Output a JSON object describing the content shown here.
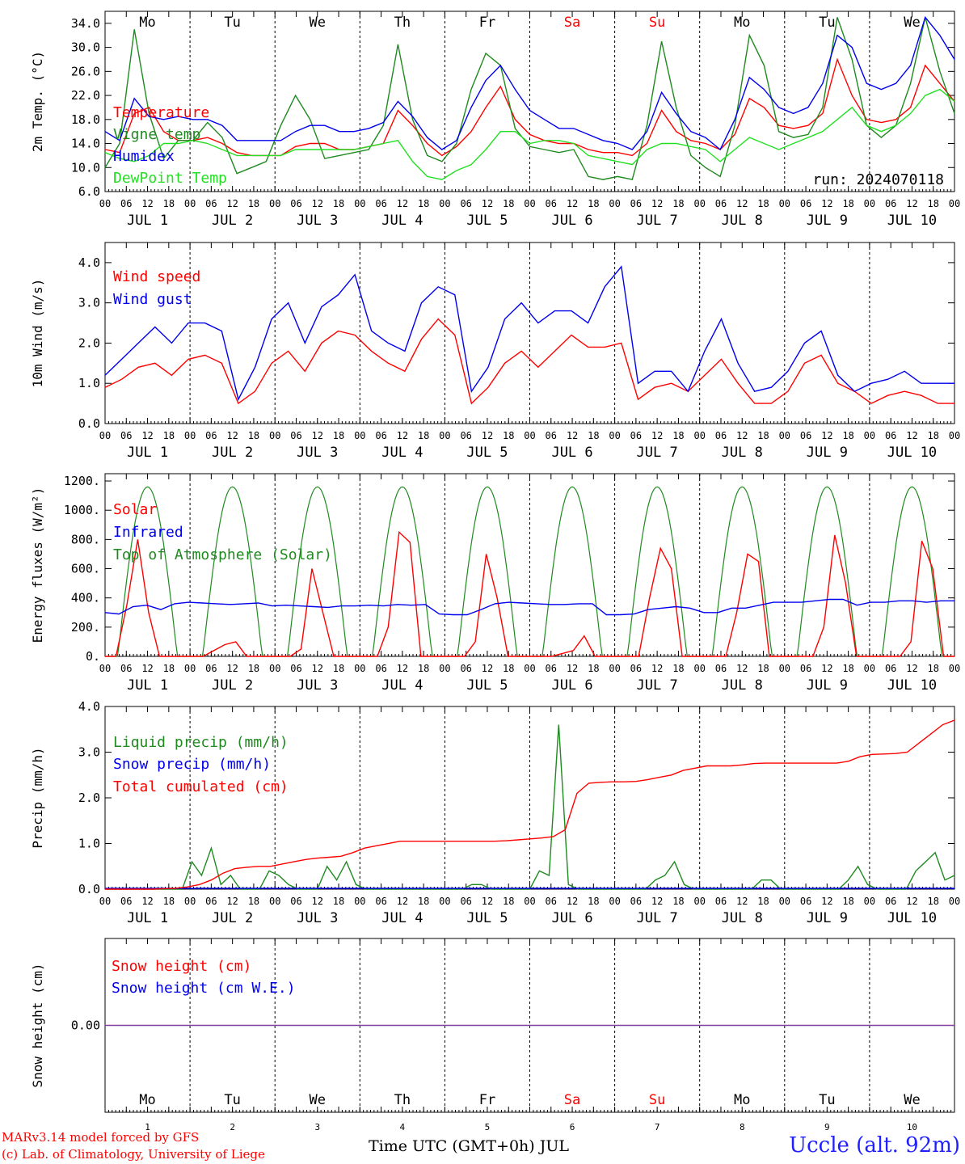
{
  "colors": {
    "temp": "#ff0000",
    "vigne": "#1f8a1f",
    "humidex": "#0000ee",
    "dew": "#22e022",
    "precip_liquid": "#1f8a1f",
    "precip_snow": "#0000ee",
    "cum": "#ff0000",
    "snow_cm": "#ff0000",
    "snow_we": "#0000ee",
    "snow_line": "#8040a0",
    "weekend": "#ff0000",
    "axis": "#000000"
  },
  "days": {
    "names": [
      "Mo",
      "Tu",
      "We",
      "Th",
      "Fr",
      "Sa",
      "Su",
      "Mo",
      "Tu",
      "We"
    ],
    "weekend": [
      false,
      false,
      false,
      false,
      false,
      true,
      true,
      false,
      false,
      false
    ],
    "numbers": [
      "1",
      "2",
      "3",
      "4",
      "5",
      "6",
      "7",
      "8",
      "9",
      "10"
    ],
    "labels": [
      "JUL  1",
      "JUL  2",
      "JUL  3",
      "JUL  4",
      "JUL  5",
      "JUL  6",
      "JUL  7",
      "JUL  8",
      "JUL  9",
      "JUL 10"
    ],
    "hour_ticks": [
      "00",
      "06",
      "12",
      "18"
    ],
    "final_tick": "00"
  },
  "chart_data": [
    {
      "type": "line",
      "ylabel": "2m Temp. (°C)",
      "ylim": [
        6,
        36
      ],
      "yticks": [
        "6.0",
        "10.0",
        "14.0",
        "18.0",
        "22.0",
        "26.0",
        "30.0",
        "34.0"
      ],
      "annotation": "run: 2024070118",
      "hours_per_step": 6,
      "series": [
        {
          "name": "Temperature",
          "key": "temp",
          "values": [
            13,
            12.5,
            19,
            20,
            16,
            14.5,
            14.5,
            15,
            14,
            12.5,
            12,
            12,
            12,
            13.5,
            14,
            14,
            13,
            13,
            13.5,
            14,
            19.5,
            17,
            14,
            12,
            13.5,
            16,
            20,
            23.5,
            18,
            15.5,
            14.5,
            14,
            14,
            13,
            12.5,
            12.5,
            12,
            14,
            19.5,
            16,
            14.5,
            14,
            13,
            15.5,
            21.5,
            20,
            17,
            16.5,
            17,
            19,
            28,
            22,
            18,
            17.5,
            18,
            20,
            27,
            24,
            21
          ]
        },
        {
          "name": "Vigne temp",
          "key": "vigne",
          "values": [
            10,
            14,
            33,
            19,
            11.5,
            14.5,
            14.5,
            17.5,
            15,
            9,
            10,
            11,
            17,
            22,
            18,
            11.5,
            12,
            12.5,
            13,
            17,
            30.5,
            18,
            12,
            11,
            14,
            23,
            29,
            27,
            16.5,
            13.5,
            13,
            12.5,
            13,
            8.5,
            8,
            8.5,
            8,
            17,
            31,
            20,
            12,
            10,
            8.5,
            17,
            32,
            27,
            16,
            15,
            15.5,
            20,
            35,
            28,
            17,
            15,
            17,
            24,
            35,
            26,
            19
          ]
        },
        {
          "name": "Humidex",
          "key": "humidex",
          "values": [
            16,
            14.5,
            21.5,
            18.5,
            18,
            18.5,
            18,
            18,
            17,
            14.5,
            14.5,
            14.5,
            14.5,
            16,
            17,
            17,
            16,
            16,
            16.5,
            17.5,
            21,
            18.5,
            15,
            13,
            14.5,
            20,
            24.5,
            27,
            23,
            19.5,
            18,
            16.5,
            16.5,
            15.5,
            14.5,
            14,
            13,
            16,
            22.5,
            19,
            16,
            15,
            13,
            18,
            25,
            23,
            20,
            19,
            20,
            24,
            32,
            30,
            24,
            23,
            24,
            27,
            35,
            32,
            28
          ]
        },
        {
          "name": "DewPoint Temp",
          "key": "dew",
          "values": [
            12.5,
            11.5,
            11,
            12,
            14,
            14,
            14.5,
            14,
            13,
            12,
            12,
            12,
            12,
            13,
            13,
            13,
            13,
            13,
            13.5,
            14,
            14.5,
            11,
            8.5,
            8,
            9.5,
            10.5,
            13,
            16,
            16,
            14,
            14.5,
            14.5,
            14,
            12,
            11.5,
            11,
            10.5,
            13,
            14,
            14,
            13.5,
            13,
            11,
            13,
            15,
            14,
            13,
            14,
            15,
            16,
            18,
            20,
            17,
            16,
            17,
            19,
            22,
            23,
            21
          ]
        }
      ]
    },
    {
      "type": "line",
      "ylabel": "10m Wind (m/s)",
      "ylim": [
        0,
        4.5
      ],
      "yticks": [
        "0.0",
        "1.0",
        "2.0",
        "3.0",
        "4.0"
      ],
      "hours_per_step": 6,
      "series": [
        {
          "name": "Wind speed",
          "key": "speed",
          "values": [
            0.9,
            1.1,
            1.4,
            1.5,
            1.2,
            1.6,
            1.7,
            1.5,
            0.5,
            0.8,
            1.5,
            1.8,
            1.3,
            2.0,
            2.3,
            2.2,
            1.8,
            1.5,
            1.3,
            2.1,
            2.6,
            2.2,
            0.5,
            0.9,
            1.5,
            1.8,
            1.4,
            1.8,
            2.2,
            1.9,
            1.9,
            2.0,
            0.6,
            0.9,
            1.0,
            0.8,
            1.2,
            1.6,
            1.0,
            0.5,
            0.5,
            0.8,
            1.5,
            1.7,
            1.0,
            0.8,
            0.5,
            0.7,
            0.8,
            0.7,
            0.5,
            0.5
          ]
        },
        {
          "name": "Wind gust",
          "key": "gust",
          "values": [
            1.2,
            1.6,
            2.0,
            2.4,
            2.0,
            2.5,
            2.5,
            2.3,
            0.6,
            1.4,
            2.6,
            3.0,
            2.0,
            2.9,
            3.2,
            3.7,
            2.3,
            2.0,
            1.8,
            3.0,
            3.4,
            3.2,
            0.8,
            1.4,
            2.6,
            3.0,
            2.5,
            2.8,
            2.8,
            2.5,
            3.4,
            3.9,
            1.0,
            1.3,
            1.3,
            0.8,
            1.8,
            2.6,
            1.5,
            0.8,
            0.9,
            1.3,
            2.0,
            2.3,
            1.2,
            0.8,
            1.0,
            1.1,
            1.3,
            1.0,
            1.0,
            1.0
          ]
        }
      ]
    },
    {
      "type": "line",
      "ylabel": "Energy fluxes (W/m²)",
      "ylim": [
        0,
        1250
      ],
      "yticks": [
        "0.",
        "200.",
        "400.",
        "600.",
        "800.",
        "1000.",
        "1200."
      ],
      "hours_per_step": 3,
      "series": [
        {
          "name": "Solar",
          "key": "solar",
          "values": [
            0,
            0,
            350,
            800,
            300,
            0,
            0,
            0,
            0,
            0,
            40,
            80,
            100,
            0,
            0,
            0,
            0,
            0,
            50,
            600,
            300,
            0,
            0,
            0,
            0,
            0,
            200,
            850,
            780,
            0,
            0,
            0,
            0,
            0,
            100,
            700,
            400,
            0,
            0,
            0,
            0,
            0,
            20,
            40,
            140,
            0,
            0,
            0,
            0,
            0,
            400,
            740,
            600,
            0,
            0,
            0,
            0,
            0,
            300,
            700,
            650,
            0,
            0,
            0,
            0,
            0,
            200,
            830,
            500,
            0,
            0,
            0,
            0,
            0,
            100,
            790,
            600,
            0,
            0
          ]
        },
        {
          "name": "Infrared",
          "key": "ir",
          "values": [
            300,
            290,
            340,
            350,
            320,
            360,
            370,
            365,
            360,
            355,
            360,
            365,
            345,
            350,
            345,
            340,
            335,
            345,
            345,
            350,
            345,
            355,
            350,
            355,
            290,
            285,
            285,
            320,
            360,
            370,
            365,
            360,
            355,
            355,
            360,
            360,
            285,
            285,
            290,
            320,
            330,
            340,
            330,
            300,
            300,
            330,
            330,
            350,
            370,
            370,
            370,
            380,
            390,
            390,
            350,
            370,
            370,
            380,
            380,
            370,
            380,
            380
          ]
        },
        {
          "name": "Top of Atmosphere (Solar)",
          "key": "toa",
          "values": []
        }
      ]
    },
    {
      "type": "line",
      "ylabel": "Precip (mm/h)",
      "ylim": [
        0,
        4.0
      ],
      "yticks": [
        "0.0",
        "1.0",
        "2.0",
        "3.0",
        "4.0"
      ],
      "hours_per_step": 3,
      "series": [
        {
          "name": "Liquid precip (mm/h)",
          "key": "liquid",
          "values": [
            0,
            0,
            0,
            0,
            0,
            0,
            0,
            0,
            0,
            0.6,
            0.3,
            0.9,
            0.1,
            0.3,
            0,
            0,
            0,
            0.4,
            0.3,
            0.1,
            0,
            0,
            0,
            0.5,
            0.2,
            0.6,
            0.1,
            0,
            0,
            0,
            0,
            0,
            0,
            0,
            0,
            0,
            0,
            0,
            0.1,
            0.1,
            0,
            0,
            0,
            0,
            0,
            0.4,
            0.3,
            3.6,
            0.1,
            0,
            0,
            0,
            0,
            0,
            0,
            0,
            0,
            0.2,
            0.3,
            0.6,
            0.1,
            0,
            0,
            0,
            0,
            0,
            0,
            0,
            0.2,
            0.2,
            0,
            0,
            0,
            0,
            0,
            0,
            0,
            0.2,
            0.5,
            0.1,
            0,
            0,
            0,
            0,
            0.4,
            0.6,
            0.8,
            0.2,
            0.3
          ]
        },
        {
          "name": "Snow precip (mm/h)",
          "key": "snow",
          "values": []
        },
        {
          "name": "Total cumulated (cm)",
          "key": "cum",
          "values": [
            0,
            0,
            0,
            0,
            0,
            0.01,
            0.02,
            0.05,
            0.1,
            0.2,
            0.35,
            0.45,
            0.48,
            0.5,
            0.5,
            0.55,
            0.6,
            0.65,
            0.68,
            0.7,
            0.72,
            0.8,
            0.9,
            0.95,
            1.0,
            1.05,
            1.05,
            1.05,
            1.05,
            1.05,
            1.05,
            1.05,
            1.05,
            1.05,
            1.06,
            1.08,
            1.1,
            1.12,
            1.15,
            1.3,
            2.1,
            2.32,
            2.34,
            2.35,
            2.35,
            2.36,
            2.4,
            2.45,
            2.5,
            2.6,
            2.65,
            2.7,
            2.7,
            2.7,
            2.72,
            2.75,
            2.76,
            2.76,
            2.76,
            2.76,
            2.76,
            2.76,
            2.76,
            2.8,
            2.9,
            2.95,
            2.96,
            2.97,
            3.0,
            3.2,
            3.4,
            3.6,
            3.7
          ]
        }
      ]
    },
    {
      "type": "line",
      "ylabel": "Snow height (cm)",
      "yticks": [
        "0.00"
      ],
      "series": [
        {
          "name": "Snow height (cm)",
          "key": "snow_cm",
          "values": [
            0,
            0
          ]
        },
        {
          "name": "Snow height (cm W.E.)",
          "key": "snow_we",
          "values": [
            0,
            0
          ]
        }
      ],
      "xlabel": "Time UTC (GMT+0h) JUL"
    }
  ],
  "footer": {
    "credit1": "MARv3.14 model forced by GFS",
    "credit2": "(c) Lab. of Climatology, University of Liege",
    "station": "Uccle (alt. 92m)",
    "xlabel": "Time UTC (GMT+0h) JUL"
  }
}
